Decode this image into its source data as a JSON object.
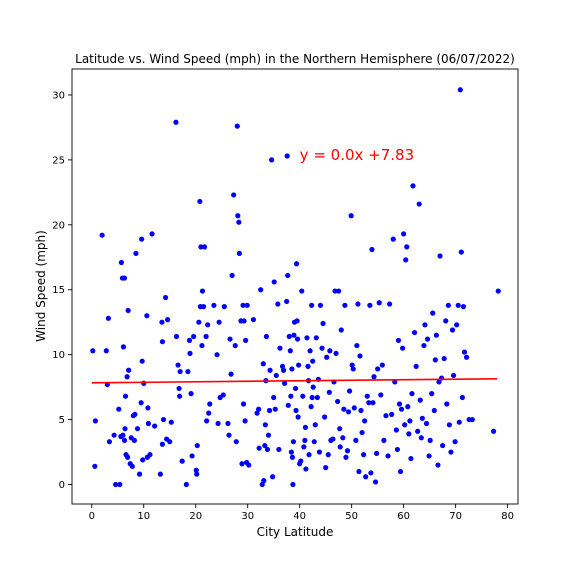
{
  "chart_data": {
    "type": "scatter",
    "title": "Latitude vs. Wind Speed (mph) in the Northern Hemisphere (06/07/2022)",
    "xlabel": "City Latitude",
    "ylabel": "Wind Speed (mph)",
    "xlim": [
      -3.8,
      82
    ],
    "ylim": [
      -1.5,
      32
    ],
    "xticks": [
      0,
      10,
      20,
      30,
      40,
      50,
      60,
      70,
      80
    ],
    "yticks": [
      0,
      5,
      10,
      15,
      20,
      25,
      30
    ],
    "grid": false,
    "point_color": "#0000ff",
    "series": [
      {
        "values": [
          [
            0.2,
            10.3
          ],
          [
            0.6,
            1.4
          ],
          [
            0.7,
            4.9
          ],
          [
            2,
            19.2
          ],
          [
            2.8,
            10.3
          ],
          [
            3,
            7.7
          ],
          [
            3.2,
            12.8
          ],
          [
            3.4,
            3.3
          ],
          [
            4.3,
            3.8
          ],
          [
            4.6,
            0
          ],
          [
            5.2,
            5.8
          ],
          [
            5.4,
            0
          ],
          [
            5.6,
            3.7
          ],
          [
            5.7,
            17.1
          ],
          [
            5.9,
            15.9
          ],
          [
            6,
            3.8
          ],
          [
            6.1,
            10.6
          ],
          [
            6.3,
            15.9
          ],
          [
            6.3,
            3.4
          ],
          [
            6.4,
            4.3
          ],
          [
            6.5,
            6.8
          ],
          [
            6.6,
            2.3
          ],
          [
            6.8,
            8.3
          ],
          [
            6.9,
            2.1
          ],
          [
            7,
            13.4
          ],
          [
            7.1,
            8.8
          ],
          [
            7.4,
            1.6
          ],
          [
            7.6,
            3.6
          ],
          [
            7.8,
            1.4
          ],
          [
            8,
            5.3
          ],
          [
            8.2,
            3.4
          ],
          [
            8.3,
            5.4
          ],
          [
            8.5,
            17.8
          ],
          [
            8.8,
            4.3
          ],
          [
            9.2,
            0.8
          ],
          [
            9.5,
            6.3
          ],
          [
            9.6,
            18.9
          ],
          [
            9.7,
            9.5
          ],
          [
            9.8,
            1.9
          ],
          [
            10,
            7.8
          ],
          [
            10.6,
            13
          ],
          [
            10.7,
            2.1
          ],
          [
            10.8,
            5.9
          ],
          [
            10.9,
            4.7
          ],
          [
            11.2,
            2.3
          ],
          [
            11.6,
            19.3
          ],
          [
            12.1,
            4.5
          ],
          [
            13.2,
            0.8
          ],
          [
            13.5,
            12.5
          ],
          [
            13.6,
            3.1
          ],
          [
            13.6,
            11
          ],
          [
            13.8,
            5
          ],
          [
            14.2,
            14.4
          ],
          [
            14.4,
            3.5
          ],
          [
            14.6,
            12.7
          ],
          [
            15,
            3.3
          ],
          [
            15.3,
            4.8
          ],
          [
            16.2,
            27.9
          ],
          [
            16.3,
            11.4
          ],
          [
            16.6,
            9.2
          ],
          [
            16.8,
            7.4
          ],
          [
            16.9,
            6.8
          ],
          [
            17,
            8.7
          ],
          [
            17.4,
            1.8
          ],
          [
            18.2,
            0
          ],
          [
            18.5,
            8.7
          ],
          [
            18.8,
            11.1
          ],
          [
            18.9,
            10.1
          ],
          [
            19.1,
            7
          ],
          [
            19.3,
            2.2
          ],
          [
            19.6,
            11.4
          ],
          [
            20.1,
            1.1
          ],
          [
            20.2,
            0.8
          ],
          [
            20.3,
            3
          ],
          [
            20.6,
            12.5
          ],
          [
            20.8,
            21.8
          ],
          [
            20.9,
            13.7
          ],
          [
            21,
            18.3
          ],
          [
            21.2,
            10.7
          ],
          [
            21.3,
            14.9
          ],
          [
            21.5,
            13.7
          ],
          [
            21.7,
            18.3
          ],
          [
            22,
            11.4
          ],
          [
            22.1,
            4.9
          ],
          [
            22.3,
            12.3
          ],
          [
            22.5,
            5.5
          ],
          [
            22.7,
            6.2
          ],
          [
            23.5,
            13.8
          ],
          [
            24.1,
            10
          ],
          [
            24.3,
            4.7
          ],
          [
            24.5,
            12.5
          ],
          [
            24.7,
            6.7
          ],
          [
            25.3,
            6.9
          ],
          [
            25.5,
            13.7
          ],
          [
            26.2,
            4.7
          ],
          [
            26.4,
            3.8
          ],
          [
            26.6,
            11.2
          ],
          [
            26.8,
            8.5
          ],
          [
            27,
            16.1
          ],
          [
            27.3,
            22.3
          ],
          [
            27.6,
            10.7
          ],
          [
            27.8,
            3.3
          ],
          [
            28,
            27.6
          ],
          [
            28.1,
            20.7
          ],
          [
            28.3,
            20.2
          ],
          [
            28.4,
            17.8
          ],
          [
            28.7,
            12.6
          ],
          [
            28.9,
            1.6
          ],
          [
            29.1,
            13.8
          ],
          [
            29.2,
            6.2
          ],
          [
            29.3,
            12.6
          ],
          [
            29.5,
            4.9
          ],
          [
            29.6,
            11.1
          ],
          [
            29.8,
            1.7
          ],
          [
            29.9,
            13.8
          ],
          [
            30.2,
            1.5
          ],
          [
            31.1,
            12.7
          ],
          [
            31.8,
            5.5
          ],
          [
            32.1,
            5.8
          ],
          [
            32.2,
            2.8
          ],
          [
            32.5,
            15
          ],
          [
            32.8,
            0
          ],
          [
            33,
            9.3
          ],
          [
            33.1,
            0.3
          ],
          [
            33.3,
            3
          ],
          [
            33.4,
            4.6
          ],
          [
            33.5,
            8
          ],
          [
            33.6,
            11.4
          ],
          [
            33.8,
            2.7
          ],
          [
            34,
            3.8
          ],
          [
            34.2,
            5.7
          ],
          [
            34.3,
            8.8
          ],
          [
            34.6,
            25
          ],
          [
            34.8,
            0.6
          ],
          [
            35,
            6.7
          ],
          [
            35.1,
            15.6
          ],
          [
            35.3,
            5.8
          ],
          [
            35.5,
            8.4
          ],
          [
            35.8,
            13.9
          ],
          [
            36,
            2.7
          ],
          [
            36.2,
            10.5
          ],
          [
            36.7,
            9.1
          ],
          [
            36.9,
            8.8
          ],
          [
            37.1,
            7.8
          ],
          [
            37.5,
            14.1
          ],
          [
            37.6,
            25.3
          ],
          [
            37.7,
            16.1
          ],
          [
            37.8,
            6.1
          ],
          [
            38,
            11.4
          ],
          [
            38.2,
            10.3
          ],
          [
            38.3,
            6.8
          ],
          [
            38.4,
            2.5
          ],
          [
            38.5,
            8.9
          ],
          [
            38.6,
            2.1
          ],
          [
            38.7,
            0
          ],
          [
            38.8,
            3.3
          ],
          [
            38.9,
            11.5
          ],
          [
            39,
            12.5
          ],
          [
            39.2,
            7.4
          ],
          [
            39.3,
            5.7
          ],
          [
            39.4,
            17
          ],
          [
            39.5,
            12.6
          ],
          [
            39.6,
            11.2
          ],
          [
            39.7,
            5.2
          ],
          [
            39.8,
            9.2
          ],
          [
            40,
            1.6
          ],
          [
            40.2,
            1.8
          ],
          [
            40.4,
            14.9
          ],
          [
            40.6,
            6.8
          ],
          [
            40.8,
            2.9
          ],
          [
            41,
            3.4
          ],
          [
            41.1,
            4.4
          ],
          [
            41.2,
            1.2
          ],
          [
            41.4,
            11.3
          ],
          [
            41.6,
            9.1
          ],
          [
            41.7,
            8
          ],
          [
            41.8,
            2.3
          ],
          [
            42,
            10.3
          ],
          [
            42.2,
            6
          ],
          [
            42.3,
            13.8
          ],
          [
            42.4,
            6.7
          ],
          [
            42.5,
            9.5
          ],
          [
            42.6,
            7.5
          ],
          [
            42.8,
            3.3
          ],
          [
            43,
            4.6
          ],
          [
            43.2,
            11.3
          ],
          [
            43.4,
            6.7
          ],
          [
            43.6,
            8.1
          ],
          [
            43.8,
            2.5
          ],
          [
            44,
            13.8
          ],
          [
            44.3,
            10.5
          ],
          [
            44.5,
            12.4
          ],
          [
            44.8,
            5.2
          ],
          [
            45,
            1.3
          ],
          [
            45.2,
            9.8
          ],
          [
            45.5,
            2.3
          ],
          [
            45.7,
            7.1
          ],
          [
            45.8,
            10.3
          ],
          [
            46,
            3.4
          ],
          [
            46.4,
            3.5
          ],
          [
            46.6,
            7.9
          ],
          [
            46.8,
            14.9
          ],
          [
            47,
            10.1
          ],
          [
            47.3,
            6.4
          ],
          [
            47.5,
            14.9
          ],
          [
            47.7,
            4.3
          ],
          [
            47.8,
            2.9
          ],
          [
            48,
            11.9
          ],
          [
            48.3,
            3.6
          ],
          [
            48.5,
            5.8
          ],
          [
            48.7,
            13.8
          ],
          [
            48.9,
            2.1
          ],
          [
            49.2,
            2.6
          ],
          [
            49.4,
            5.6
          ],
          [
            49.6,
            7.2
          ],
          [
            49.9,
            20.7
          ],
          [
            50.1,
            9.2
          ],
          [
            50.3,
            8.9
          ],
          [
            50.5,
            5.9
          ],
          [
            50.8,
            3.4
          ],
          [
            51,
            10.7
          ],
          [
            51.2,
            13.9
          ],
          [
            51.4,
            1
          ],
          [
            51.6,
            9.9
          ],
          [
            51.8,
            5.7
          ],
          [
            52,
            4
          ],
          [
            52.3,
            2.3
          ],
          [
            52.5,
            4.9
          ],
          [
            52.7,
            0.6
          ],
          [
            53,
            6.8
          ],
          [
            53.3,
            6.3
          ],
          [
            53.5,
            13.8
          ],
          [
            53.7,
            0.9
          ],
          [
            53.9,
            18.1
          ],
          [
            54.1,
            6.3
          ],
          [
            54.3,
            8.3
          ],
          [
            54.6,
            0.2
          ],
          [
            54.8,
            2.4
          ],
          [
            55,
            8.9
          ],
          [
            55.3,
            14
          ],
          [
            55.6,
            6.9
          ],
          [
            55.9,
            9.2
          ],
          [
            56.2,
            3.4
          ],
          [
            56.6,
            5.3
          ],
          [
            57,
            2.2
          ],
          [
            57.3,
            13.9
          ],
          [
            57.7,
            5.4
          ],
          [
            58,
            18.9
          ],
          [
            58.3,
            7.9
          ],
          [
            58.6,
            4.2
          ],
          [
            58.8,
            2.7
          ],
          [
            59,
            11.1
          ],
          [
            59.2,
            6.2
          ],
          [
            59.4,
            1
          ],
          [
            59.6,
            5.8
          ],
          [
            59.8,
            10.5
          ],
          [
            60,
            19.3
          ],
          [
            60.2,
            4.6
          ],
          [
            60.4,
            17.3
          ],
          [
            60.6,
            18.3
          ],
          [
            60.8,
            6
          ],
          [
            61,
            3.9
          ],
          [
            61.2,
            4.9
          ],
          [
            61.4,
            2
          ],
          [
            61.6,
            7
          ],
          [
            61.8,
            23
          ],
          [
            62.1,
            11.7
          ],
          [
            62.4,
            9.1
          ],
          [
            62.7,
            4.1
          ],
          [
            63,
            21.6
          ],
          [
            63.2,
            6.5
          ],
          [
            63.4,
            3.6
          ],
          [
            63.6,
            5.1
          ],
          [
            63.9,
            10.7
          ],
          [
            64.1,
            12.3
          ],
          [
            64.4,
            4.7
          ],
          [
            64.6,
            11.2
          ],
          [
            64.9,
            2.2
          ],
          [
            65.1,
            3.4
          ],
          [
            65.4,
            7
          ],
          [
            65.6,
            13.2
          ],
          [
            65.9,
            5.7
          ],
          [
            66.1,
            9.6
          ],
          [
            66.3,
            11.5
          ],
          [
            66.6,
            1.5
          ],
          [
            66.8,
            7.9
          ],
          [
            67,
            17.6
          ],
          [
            67.3,
            8.2
          ],
          [
            67.5,
            3
          ],
          [
            67.8,
            9.7
          ],
          [
            68.1,
            12.6
          ],
          [
            68.3,
            6.2
          ],
          [
            68.6,
            13.8
          ],
          [
            68.8,
            4.6
          ],
          [
            69.1,
            2.5
          ],
          [
            69.4,
            11.9
          ],
          [
            69.6,
            8.4
          ],
          [
            69.9,
            3.3
          ],
          [
            70.2,
            12.3
          ],
          [
            70.5,
            13.8
          ],
          [
            70.7,
            4.8
          ],
          [
            70.9,
            30.4
          ],
          [
            71.1,
            17.9
          ],
          [
            71.3,
            6.7
          ],
          [
            71.5,
            13.7
          ],
          [
            71.7,
            10.2
          ],
          [
            72.1,
            9.8
          ],
          [
            72.6,
            5
          ],
          [
            73.2,
            5
          ],
          [
            77.3,
            4.1
          ],
          [
            78.2,
            14.9
          ]
        ]
      }
    ],
    "regression": {
      "slope": 0.004,
      "intercept": 7.83,
      "x_range": [
        0,
        78
      ],
      "color": "#ff0000",
      "label": "y = 0.0x +7.83",
      "label_at": [
        40,
        25
      ]
    }
  }
}
